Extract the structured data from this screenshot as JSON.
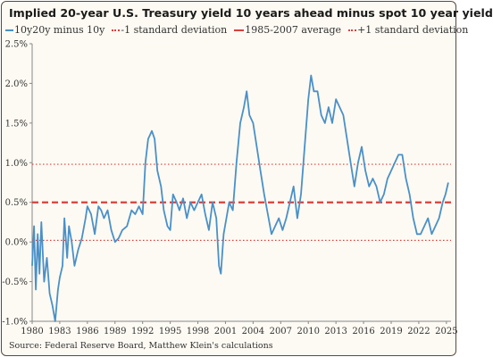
{
  "chart_data": {
    "type": "line",
    "title": "Implied 20-year U.S. Treasury yield 10 years ahead minus spot 10 year yield",
    "xlabel": "",
    "ylabel": "",
    "xlim": [
      1980,
      2025.5
    ],
    "ylim": [
      -1.0,
      2.5
    ],
    "x_ticks": [
      1980,
      1983,
      1986,
      1989,
      1992,
      1995,
      1998,
      2001,
      2004,
      2007,
      2010,
      2013,
      2016,
      2019,
      2022,
      2025
    ],
    "y_ticks": [
      -1.0,
      -0.5,
      0.0,
      0.5,
      1.0,
      1.5,
      2.0,
      2.5
    ],
    "y_tick_labels": [
      "-1.0%",
      "-0.5%",
      "0.0%",
      "0.5%",
      "1.0%",
      "1.5%",
      "2.0%",
      "2.5%"
    ],
    "grid": false,
    "legend_position": "top",
    "legend": [
      {
        "label": "10y20y minus 10y",
        "style": "solid",
        "color": "#4a90c8"
      },
      {
        "label": "-1 standard deviation",
        "style": "dotted",
        "color": "#d9403a"
      },
      {
        "label": "1985-2007 average",
        "style": "dashed",
        "color": "#d9403a"
      },
      {
        "label": "+1 standard deviation",
        "style": "dotted",
        "color": "#d9403a"
      }
    ],
    "series": [
      {
        "name": "10y20y minus 10y",
        "color": "#4a90c8",
        "x": [
          1980.0,
          1980.2,
          1980.4,
          1980.6,
          1980.8,
          1981.0,
          1981.3,
          1981.6,
          1981.9,
          1982.2,
          1982.5,
          1982.8,
          1983.0,
          1983.3,
          1983.5,
          1983.8,
          1984.0,
          1984.3,
          1984.6,
          1985.0,
          1985.4,
          1985.8,
          1986.0,
          1986.4,
          1986.8,
          1987.2,
          1987.5,
          1987.8,
          1988.2,
          1988.6,
          1989.0,
          1989.4,
          1989.8,
          1990.3,
          1990.8,
          1991.2,
          1991.6,
          1992.0,
          1992.3,
          1992.6,
          1993.0,
          1993.3,
          1993.6,
          1994.0,
          1994.3,
          1994.7,
          1995.0,
          1995.3,
          1995.7,
          1996.0,
          1996.4,
          1996.8,
          1997.2,
          1997.6,
          1998.0,
          1998.4,
          1998.8,
          1999.2,
          1999.6,
          2000.0,
          2000.3,
          2000.5,
          2000.8,
          2001.1,
          2001.4,
          2001.8,
          2002.2,
          2002.6,
          2003.0,
          2003.3,
          2003.6,
          2004.0,
          2004.4,
          2004.8,
          2005.2,
          2005.6,
          2006.0,
          2006.4,
          2006.8,
          2007.2,
          2007.6,
          2008.0,
          2008.4,
          2008.8,
          2009.2,
          2009.6,
          2010.0,
          2010.3,
          2010.6,
          2011.0,
          2011.4,
          2011.8,
          2012.2,
          2012.6,
          2013.0,
          2013.4,
          2013.8,
          2014.2,
          2014.6,
          2015.0,
          2015.4,
          2015.8,
          2016.2,
          2016.6,
          2017.0,
          2017.4,
          2017.8,
          2018.2,
          2018.6,
          2019.0,
          2019.4,
          2019.8,
          2020.2,
          2020.6,
          2021.0,
          2021.4,
          2021.8,
          2022.2,
          2022.6,
          2023.0,
          2023.4,
          2023.8,
          2024.2,
          2024.6,
          2024.9,
          2025.2
        ],
        "y": [
          -0.3,
          0.2,
          -0.6,
          0.1,
          -0.4,
          0.25,
          -0.5,
          -0.2,
          -0.65,
          -0.8,
          -1.0,
          -0.6,
          -0.45,
          -0.3,
          0.3,
          -0.2,
          0.2,
          0.0,
          -0.3,
          -0.1,
          0.05,
          0.3,
          0.45,
          0.35,
          0.1,
          0.45,
          0.4,
          0.3,
          0.4,
          0.15,
          0.0,
          0.05,
          0.15,
          0.2,
          0.4,
          0.35,
          0.45,
          0.35,
          1.0,
          1.3,
          1.4,
          1.3,
          0.9,
          0.7,
          0.4,
          0.2,
          0.15,
          0.6,
          0.5,
          0.4,
          0.55,
          0.3,
          0.5,
          0.4,
          0.5,
          0.6,
          0.35,
          0.15,
          0.5,
          0.3,
          -0.3,
          -0.4,
          0.1,
          0.3,
          0.5,
          0.4,
          1.0,
          1.5,
          1.7,
          1.9,
          1.6,
          1.5,
          1.2,
          0.9,
          0.6,
          0.35,
          0.1,
          0.2,
          0.3,
          0.15,
          0.3,
          0.5,
          0.7,
          0.3,
          0.6,
          1.2,
          1.8,
          2.1,
          1.9,
          1.9,
          1.6,
          1.5,
          1.7,
          1.5,
          1.8,
          1.7,
          1.6,
          1.3,
          1.0,
          0.7,
          1.0,
          1.2,
          0.9,
          0.7,
          0.8,
          0.7,
          0.5,
          0.6,
          0.8,
          0.9,
          1.0,
          1.1,
          1.1,
          0.8,
          0.6,
          0.3,
          0.1,
          0.1,
          0.2,
          0.3,
          0.1,
          0.2,
          0.3,
          0.5,
          0.6,
          0.75
        ]
      }
    ],
    "reference_lines": [
      {
        "name": "-1 standard deviation",
        "y": 0.02,
        "style": "dotted",
        "color": "#d9403a"
      },
      {
        "name": "1985-2007 average",
        "y": 0.5,
        "style": "dashed",
        "color": "#d9403a"
      },
      {
        "name": "+1 standard deviation",
        "y": 0.98,
        "style": "dotted",
        "color": "#d9403a"
      }
    ]
  },
  "source": "Source: Federal Reserve Board, Matthew Klein's calculations"
}
